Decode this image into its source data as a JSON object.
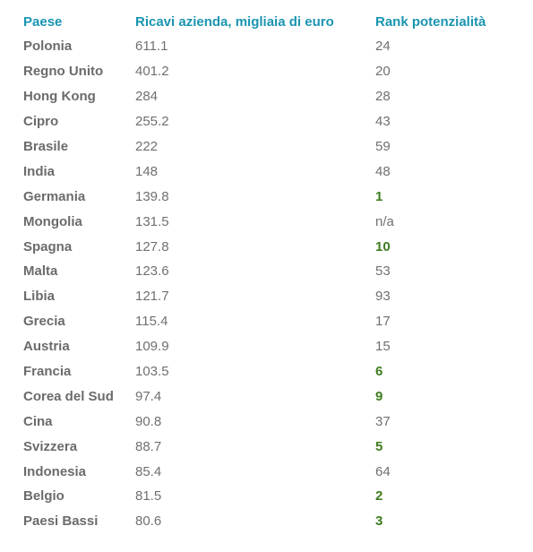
{
  "header": {
    "country": "Paese",
    "revenue": "Ricavi azienda, migliaia di euro",
    "rank": "Rank potenzialità"
  },
  "colors": {
    "header": "#1a95b0",
    "country": "#6b6b6b",
    "value": "#707070",
    "highlight": "#3e7d1f"
  },
  "rows": [
    {
      "country": "Polonia",
      "revenue": "611.1",
      "rank": "24",
      "highlight": false
    },
    {
      "country": "Regno Unito",
      "revenue": "401.2",
      "rank": "20",
      "highlight": false
    },
    {
      "country": "Hong Kong",
      "revenue": "284",
      "rank": "28",
      "highlight": false
    },
    {
      "country": "Cipro",
      "revenue": "255.2",
      "rank": "43",
      "highlight": false
    },
    {
      "country": "Brasile",
      "revenue": "222",
      "rank": "59",
      "highlight": false
    },
    {
      "country": "India",
      "revenue": "148",
      "rank": "48",
      "highlight": false
    },
    {
      "country": "Germania",
      "revenue": "139.8",
      "rank": "1",
      "highlight": true
    },
    {
      "country": "Mongolia",
      "revenue": "131.5",
      "rank": "n/a",
      "highlight": false
    },
    {
      "country": "Spagna",
      "revenue": "127.8",
      "rank": "10",
      "highlight": true
    },
    {
      "country": "Malta",
      "revenue": "123.6",
      "rank": "53",
      "highlight": false
    },
    {
      "country": "Libia",
      "revenue": "121.7",
      "rank": "93",
      "highlight": false
    },
    {
      "country": "Grecia",
      "revenue": "115.4",
      "rank": "17",
      "highlight": false
    },
    {
      "country": "Austria",
      "revenue": "109.9",
      "rank": "15",
      "highlight": false
    },
    {
      "country": "Francia",
      "revenue": "103.5",
      "rank": "6",
      "highlight": true
    },
    {
      "country": "Corea del Sud",
      "revenue": "97.4",
      "rank": "9",
      "highlight": true
    },
    {
      "country": "Cina",
      "revenue": "90.8",
      "rank": "37",
      "highlight": false
    },
    {
      "country": "Svizzera",
      "revenue": "88.7",
      "rank": "5",
      "highlight": true
    },
    {
      "country": "Indonesia",
      "revenue": "85.4",
      "rank": "64",
      "highlight": false
    },
    {
      "country": "Belgio",
      "revenue": "81.5",
      "rank": "2",
      "highlight": true
    },
    {
      "country": "Paesi Bassi",
      "revenue": "80.6",
      "rank": "3",
      "highlight": true
    }
  ]
}
